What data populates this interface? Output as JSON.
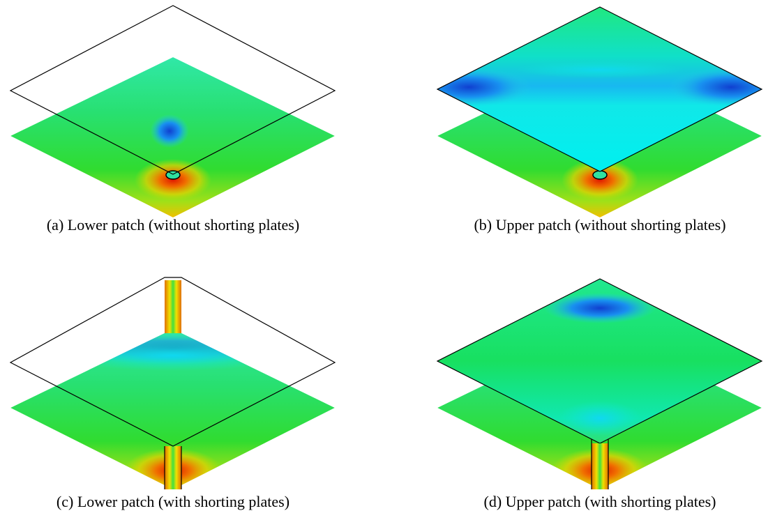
{
  "figure": {
    "panels": [
      {
        "caption": "(a) Lower patch (without shorting plates)"
      },
      {
        "caption": "(b) Upper patch (without shorting plates)"
      },
      {
        "caption": "(c) Lower patch (with shorting plates)"
      },
      {
        "caption": "(d) Upper patch (with shorting plates)"
      }
    ]
  }
}
